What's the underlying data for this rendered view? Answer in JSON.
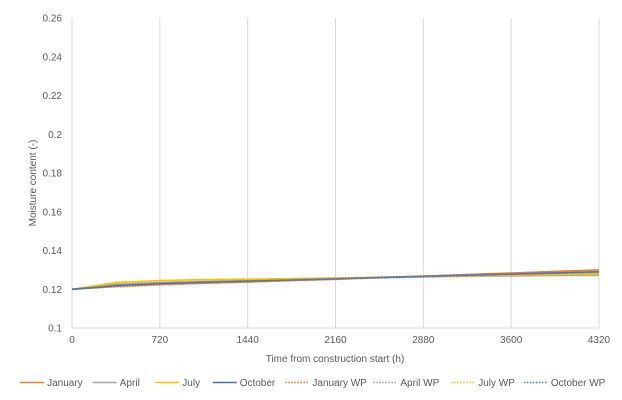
{
  "chart_data": {
    "type": "line",
    "title": "",
    "xlabel": "Time from construction start (h)",
    "ylabel": "Moisture content (-)",
    "xlim": [
      0,
      4320
    ],
    "ylim": [
      0.1,
      0.26
    ],
    "x_ticks": [
      0,
      720,
      1440,
      2160,
      2880,
      3600,
      4320
    ],
    "y_ticks": [
      0.1,
      0.12,
      0.14,
      0.16,
      0.18,
      0.2,
      0.22,
      0.24,
      0.26
    ],
    "y_tick_labels": [
      "0.1",
      "0.12",
      "0.14",
      "0.16",
      "0.18",
      "0.2",
      "0.22",
      "0.24",
      "0.26"
    ],
    "grid": "vertical",
    "legend_position": "bottom",
    "x": [
      0,
      360,
      720,
      1080,
      1440,
      1800,
      2160,
      2520,
      2880,
      3240,
      3600,
      3960,
      4320
    ],
    "series": [
      {
        "name": "January",
        "color": "#ED7D31",
        "dash": "solid",
        "values": [
          0.12,
          0.1215,
          0.1225,
          0.1232,
          0.1238,
          0.1245,
          0.1252,
          0.126,
          0.1268,
          0.1276,
          0.1284,
          0.1292,
          0.13
        ]
      },
      {
        "name": "April",
        "color": "#A5A5A5",
        "dash": "solid",
        "values": [
          0.12,
          0.1225,
          0.1235,
          0.124,
          0.1245,
          0.125,
          0.1255,
          0.126,
          0.1265,
          0.1268,
          0.127,
          0.1272,
          0.1273
        ]
      },
      {
        "name": "July",
        "color": "#FFC000",
        "dash": "solid",
        "values": [
          0.12,
          0.1235,
          0.1245,
          0.125,
          0.1252,
          0.1255,
          0.1258,
          0.1262,
          0.1266,
          0.127,
          0.1274,
          0.1278,
          0.128
        ]
      },
      {
        "name": "October",
        "color": "#4472C4",
        "dash": "solid",
        "values": [
          0.12,
          0.122,
          0.123,
          0.1237,
          0.1243,
          0.1249,
          0.1255,
          0.1261,
          0.1267,
          0.1273,
          0.1279,
          0.1285,
          0.129
        ]
      },
      {
        "name": "January WP",
        "color": "#ED7D31",
        "dash": "dotted",
        "values": [
          0.12,
          0.1212,
          0.1222,
          0.123,
          0.1237,
          0.1244,
          0.1251,
          0.1259,
          0.1267,
          0.1275,
          0.1283,
          0.129,
          0.1297
        ]
      },
      {
        "name": "April WP",
        "color": "#A5A5A5",
        "dash": "dotted",
        "values": [
          0.12,
          0.1222,
          0.1232,
          0.1238,
          0.1243,
          0.1248,
          0.1253,
          0.1258,
          0.1263,
          0.1266,
          0.1268,
          0.127,
          0.1271
        ]
      },
      {
        "name": "July WP",
        "color": "#FFC000",
        "dash": "dotted",
        "values": [
          0.12,
          0.1232,
          0.1242,
          0.1247,
          0.125,
          0.1253,
          0.1256,
          0.126,
          0.1264,
          0.1268,
          0.1272,
          0.1275,
          0.1277
        ]
      },
      {
        "name": "October WP",
        "color": "#4472C4",
        "dash": "dotted",
        "values": [
          0.12,
          0.1218,
          0.1228,
          0.1235,
          0.1241,
          0.1247,
          0.1253,
          0.1259,
          0.1265,
          0.1271,
          0.1277,
          0.1283,
          0.1288
        ]
      }
    ]
  }
}
